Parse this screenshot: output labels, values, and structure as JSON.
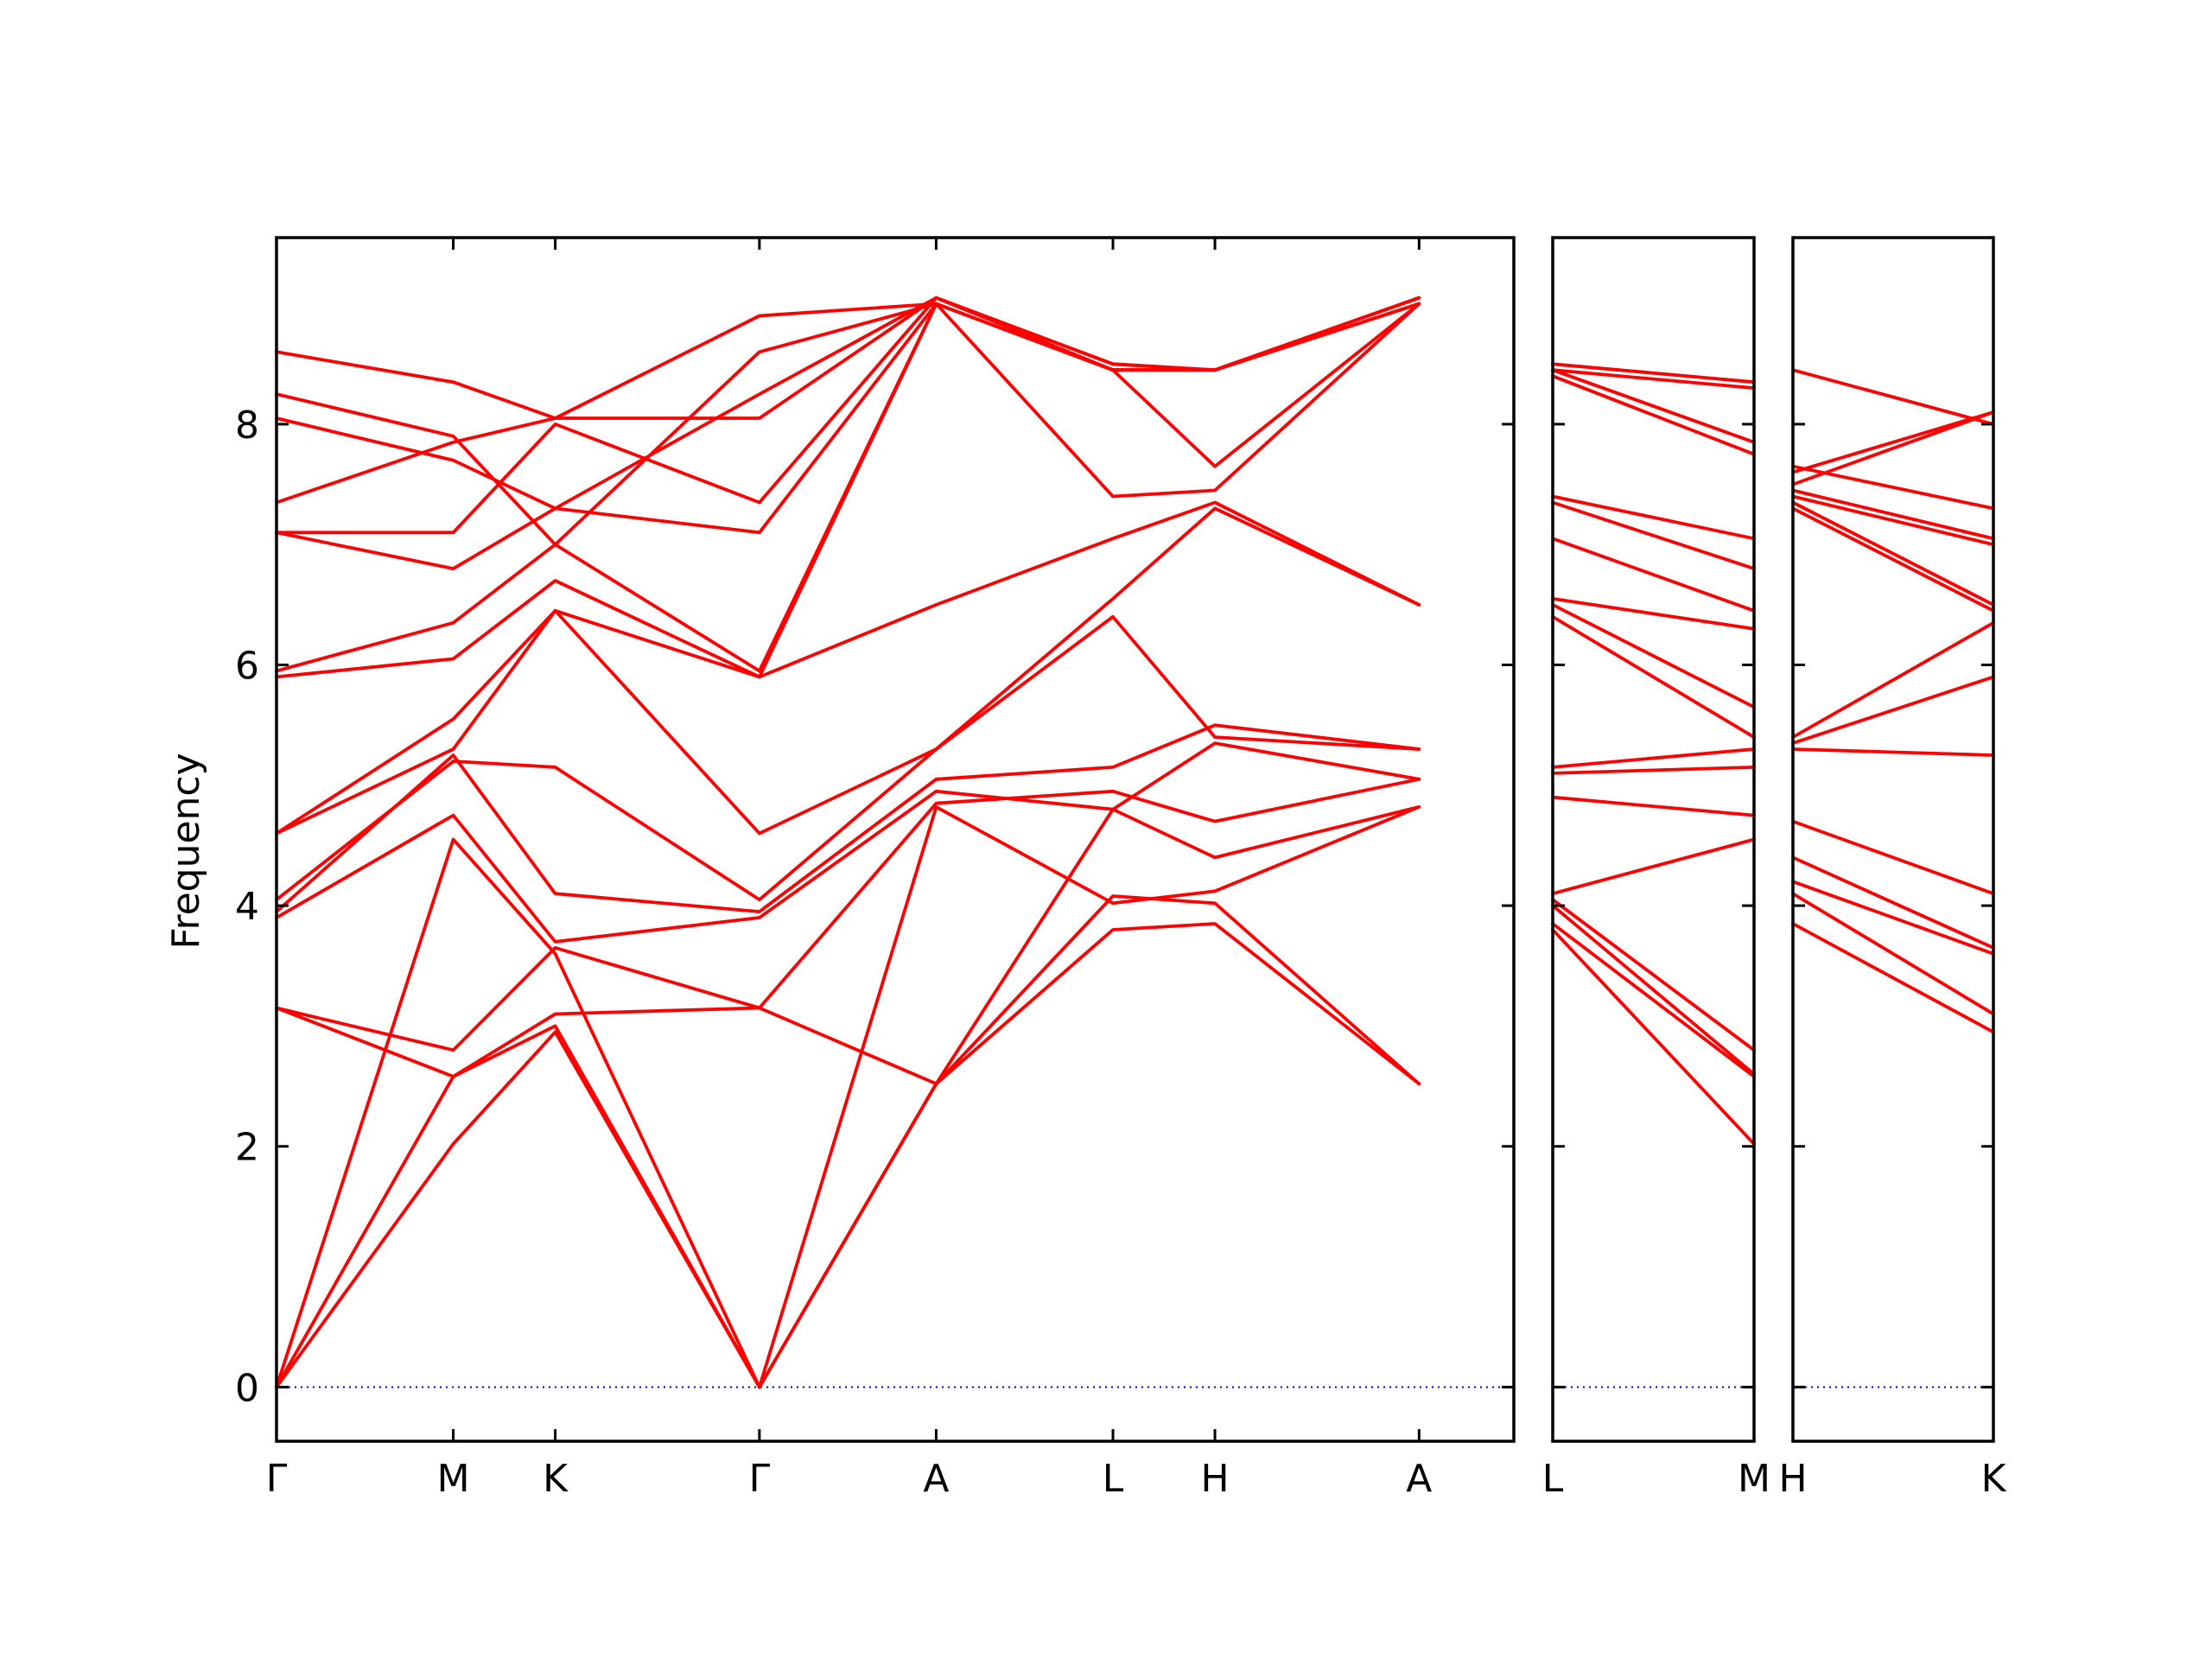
{
  "colors": {
    "band": "#ff0000",
    "zero_line": "#0000ff"
  },
  "chart_data": {
    "type": "line",
    "title": "",
    "xlabel": "",
    "ylabel": "Frequency",
    "ylim": [
      -0.45,
      9.55
    ],
    "yticks": [
      0,
      2,
      4,
      6,
      8
    ],
    "zero_line": {
      "y": 0,
      "style": "dotted"
    },
    "grid": false,
    "panels": [
      {
        "id": "panel-1",
        "x_range": [
          0,
          7
        ],
        "ticks": [
          {
            "x": 0,
            "label": "Γ"
          },
          {
            "x": 1,
            "label": "M"
          },
          {
            "x": 1.577,
            "label": "K"
          },
          {
            "x": 2.732,
            "label": "Γ"
          },
          {
            "x": 3.732,
            "label": "A"
          },
          {
            "x": 4.732,
            "label": "L"
          },
          {
            "x": 5.309,
            "label": "H"
          },
          {
            "x": 6.464,
            "label": "A"
          }
        ],
        "bands": [
          {
            "name": "",
            "x": [
              0,
              1,
              1.577,
              2.732,
              3.732,
              4.732,
              5.309,
              6.464
            ],
            "y": [
              0,
              2.02,
              2.95,
              0,
              2.52,
              3.8,
              3.85,
              2.52
            ]
          },
          {
            "name": "",
            "x": [
              0,
              1,
              1.577,
              2.732,
              3.732,
              4.732,
              5.309,
              6.464
            ],
            "y": [
              0,
              2.58,
              3.0,
              0,
              2.52,
              4.08,
              4.02,
              2.52
            ]
          },
          {
            "name": "",
            "x": [
              0,
              1,
              1.577,
              2.732,
              3.732,
              4.732,
              5.309,
              6.464
            ],
            "y": [
              0,
              4.55,
              3.6,
              0,
              4.82,
              4.02,
              4.12,
              4.82
            ]
          },
          {
            "name": "",
            "x": [
              0,
              1,
              1.577,
              2.732,
              3.732,
              4.732,
              5.309,
              6.464
            ],
            "y": [
              3.15,
              2.58,
              3.1,
              3.15,
              2.52,
              4.8,
              4.4,
              4.82
            ]
          },
          {
            "name": "",
            "x": [
              0,
              1,
              1.577,
              2.732,
              3.732,
              4.732,
              5.309,
              6.464
            ],
            "y": [
              3.15,
              2.8,
              3.65,
              3.15,
              4.85,
              4.95,
              4.7,
              5.05
            ]
          },
          {
            "name": "",
            "x": [
              0,
              1,
              1.577,
              2.732,
              3.732,
              4.732,
              5.309,
              6.464
            ],
            "y": [
              3.9,
              4.75,
              3.7,
              3.9,
              4.95,
              4.8,
              5.35,
              5.05
            ]
          },
          {
            "name": "",
            "x": [
              0,
              1,
              1.577,
              2.732,
              3.732,
              4.732,
              5.309,
              6.464
            ],
            "y": [
              3.95,
              5.25,
              4.1,
              3.95,
              5.05,
              5.15,
              5.5,
              5.3
            ]
          },
          {
            "name": "",
            "x": [
              0,
              1,
              1.577,
              2.732,
              3.732,
              4.732,
              5.309,
              6.464
            ],
            "y": [
              4.05,
              5.2,
              5.15,
              4.05,
              5.3,
              6.4,
              5.4,
              5.3
            ]
          },
          {
            "name": "",
            "x": [
              0,
              1,
              1.577,
              2.732,
              3.732,
              4.732,
              5.309,
              6.464
            ],
            "y": [
              4.6,
              5.3,
              6.45,
              4.6,
              5.3,
              6.55,
              7.3,
              6.5
            ]
          },
          {
            "name": "",
            "x": [
              0,
              1,
              1.577,
              2.732,
              3.732,
              4.732,
              5.309,
              6.464
            ],
            "y": [
              4.6,
              5.55,
              6.45,
              5.9,
              6.5,
              7.05,
              7.35,
              6.5
            ]
          },
          {
            "name": "",
            "x": [
              0,
              1,
              1.577,
              2.732,
              3.732,
              4.732,
              5.309,
              6.464
            ],
            "y": [
              5.9,
              6.05,
              6.7,
              5.9,
              9.0,
              7.4,
              7.45,
              9.0
            ]
          },
          {
            "name": "",
            "x": [
              0,
              1,
              1.577,
              2.732,
              3.732,
              4.732,
              5.309,
              6.464
            ],
            "y": [
              5.95,
              6.35,
              7.0,
              5.95,
              9.0,
              8.45,
              7.65,
              9.0
            ]
          },
          {
            "name": "",
            "x": [
              0,
              1,
              1.577,
              2.732,
              3.732,
              4.732,
              5.309,
              6.464
            ],
            "y": [
              7.1,
              6.8,
              7.3,
              7.1,
              9.0,
              8.45,
              8.45,
              9.0
            ]
          },
          {
            "name": "",
            "x": [
              0,
              1,
              1.577,
              2.732,
              3.732,
              4.732,
              5.309,
              6.464
            ],
            "y": [
              7.1,
              7.1,
              8.0,
              7.35,
              9.05,
              8.5,
              8.45,
              9.05
            ]
          },
          {
            "name": "",
            "x": [
              0,
              1,
              1.577,
              2.732,
              3.732,
              4.732,
              5.309,
              6.464
            ],
            "y": [
              7.35,
              7.85,
              8.05,
              8.05,
              9.05,
              8.45,
              8.45,
              9.05
            ]
          },
          {
            "name": "",
            "x": [
              0,
              1,
              1.577,
              2.732,
              3.732,
              4.732,
              5.309,
              6.464
            ],
            "y": [
              8.05,
              7.7,
              7.3,
              8.25,
              9.05,
              8.5,
              8.45,
              9.05
            ]
          },
          {
            "name": "",
            "x": [
              0,
              1,
              1.577,
              2.732,
              3.732,
              4.732,
              5.309,
              6.464
            ],
            "y": [
              8.25,
              7.9,
              7.0,
              8.6,
              9.0,
              8.45,
              8.45,
              9.0
            ]
          },
          {
            "name": "",
            "x": [
              0,
              1,
              1.577,
              2.732,
              3.732,
              4.732,
              5.309,
              6.464
            ],
            "y": [
              8.6,
              8.35,
              8.05,
              8.9,
              9.0,
              8.45,
              8.45,
              9.0
            ]
          }
        ]
      },
      {
        "id": "panel-2",
        "x_range": [
          0,
          1
        ],
        "ticks": [
          {
            "x": 0,
            "label": "L"
          },
          {
            "x": 1,
            "label": "M"
          }
        ],
        "bands": [
          {
            "name": "",
            "x": [
              0,
              1
            ],
            "y": [
              3.8,
              2.02
            ]
          },
          {
            "name": "",
            "x": [
              0,
              1
            ],
            "y": [
              3.85,
              2.58
            ]
          },
          {
            "name": "",
            "x": [
              0,
              1
            ],
            "y": [
              4.0,
              2.6
            ]
          },
          {
            "name": "",
            "x": [
              0,
              1
            ],
            "y": [
              4.05,
              2.8
            ]
          },
          {
            "name": "",
            "x": [
              0,
              1
            ],
            "y": [
              4.1,
              4.55
            ]
          },
          {
            "name": "",
            "x": [
              0,
              1
            ],
            "y": [
              4.9,
              4.75
            ]
          },
          {
            "name": "",
            "x": [
              0,
              1
            ],
            "y": [
              5.1,
              5.15
            ]
          },
          {
            "name": "",
            "x": [
              0,
              1
            ],
            "y": [
              5.15,
              5.3
            ]
          },
          {
            "name": "",
            "x": [
              0,
              1
            ],
            "y": [
              6.4,
              5.4
            ]
          },
          {
            "name": "",
            "x": [
              0,
              1
            ],
            "y": [
              6.5,
              5.65
            ]
          },
          {
            "name": "",
            "x": [
              0,
              1
            ],
            "y": [
              6.55,
              6.3
            ]
          },
          {
            "name": "",
            "x": [
              0,
              1
            ],
            "y": [
              7.05,
              6.45
            ]
          },
          {
            "name": "",
            "x": [
              0,
              1
            ],
            "y": [
              7.35,
              6.8
            ]
          },
          {
            "name": "",
            "x": [
              0,
              1
            ],
            "y": [
              7.4,
              7.05
            ]
          },
          {
            "name": "",
            "x": [
              0,
              1
            ],
            "y": [
              8.4,
              7.75
            ]
          },
          {
            "name": "",
            "x": [
              0,
              1
            ],
            "y": [
              8.45,
              7.85
            ]
          },
          {
            "name": "",
            "x": [
              0,
              1
            ],
            "y": [
              8.45,
              8.3
            ]
          },
          {
            "name": "",
            "x": [
              0,
              1
            ],
            "y": [
              8.5,
              8.35
            ]
          }
        ]
      },
      {
        "id": "panel-3",
        "x_range": [
          0,
          1
        ],
        "ticks": [
          {
            "x": 0,
            "label": "H"
          },
          {
            "x": 1,
            "label": "K"
          }
        ],
        "bands": [
          {
            "name": "",
            "x": [
              0,
              1
            ],
            "y": [
              3.85,
              2.95
            ]
          },
          {
            "name": "",
            "x": [
              0,
              1
            ],
            "y": [
              4.1,
              3.1
            ]
          },
          {
            "name": "",
            "x": [
              0,
              1
            ],
            "y": [
              4.2,
              3.6
            ]
          },
          {
            "name": "",
            "x": [
              0,
              1
            ],
            "y": [
              4.4,
              3.65
            ]
          },
          {
            "name": "",
            "x": [
              0,
              1
            ],
            "y": [
              4.7,
              4.1
            ]
          },
          {
            "name": "",
            "x": [
              0,
              1
            ],
            "y": [
              5.3,
              5.25
            ]
          },
          {
            "name": "",
            "x": [
              0,
              1
            ],
            "y": [
              5.35,
              5.9
            ]
          },
          {
            "name": "",
            "x": [
              0,
              1
            ],
            "y": [
              5.4,
              6.35
            ]
          },
          {
            "name": "",
            "x": [
              0,
              1
            ],
            "y": [
              7.3,
              6.45
            ]
          },
          {
            "name": "",
            "x": [
              0,
              1
            ],
            "y": [
              7.35,
              6.5
            ]
          },
          {
            "name": "",
            "x": [
              0,
              1
            ],
            "y": [
              7.4,
              7.0
            ]
          },
          {
            "name": "",
            "x": [
              0,
              1
            ],
            "y": [
              7.45,
              7.05
            ]
          },
          {
            "name": "",
            "x": [
              0,
              1
            ],
            "y": [
              7.65,
              7.3
            ]
          },
          {
            "name": "",
            "x": [
              0,
              1
            ],
            "y": [
              8.45,
              8.0
            ]
          },
          {
            "name": "",
            "x": [
              0,
              1
            ],
            "y": [
              7.5,
              8.1
            ]
          },
          {
            "name": "",
            "x": [
              0,
              1
            ],
            "y": [
              7.6,
              8.1
            ]
          }
        ]
      }
    ]
  }
}
